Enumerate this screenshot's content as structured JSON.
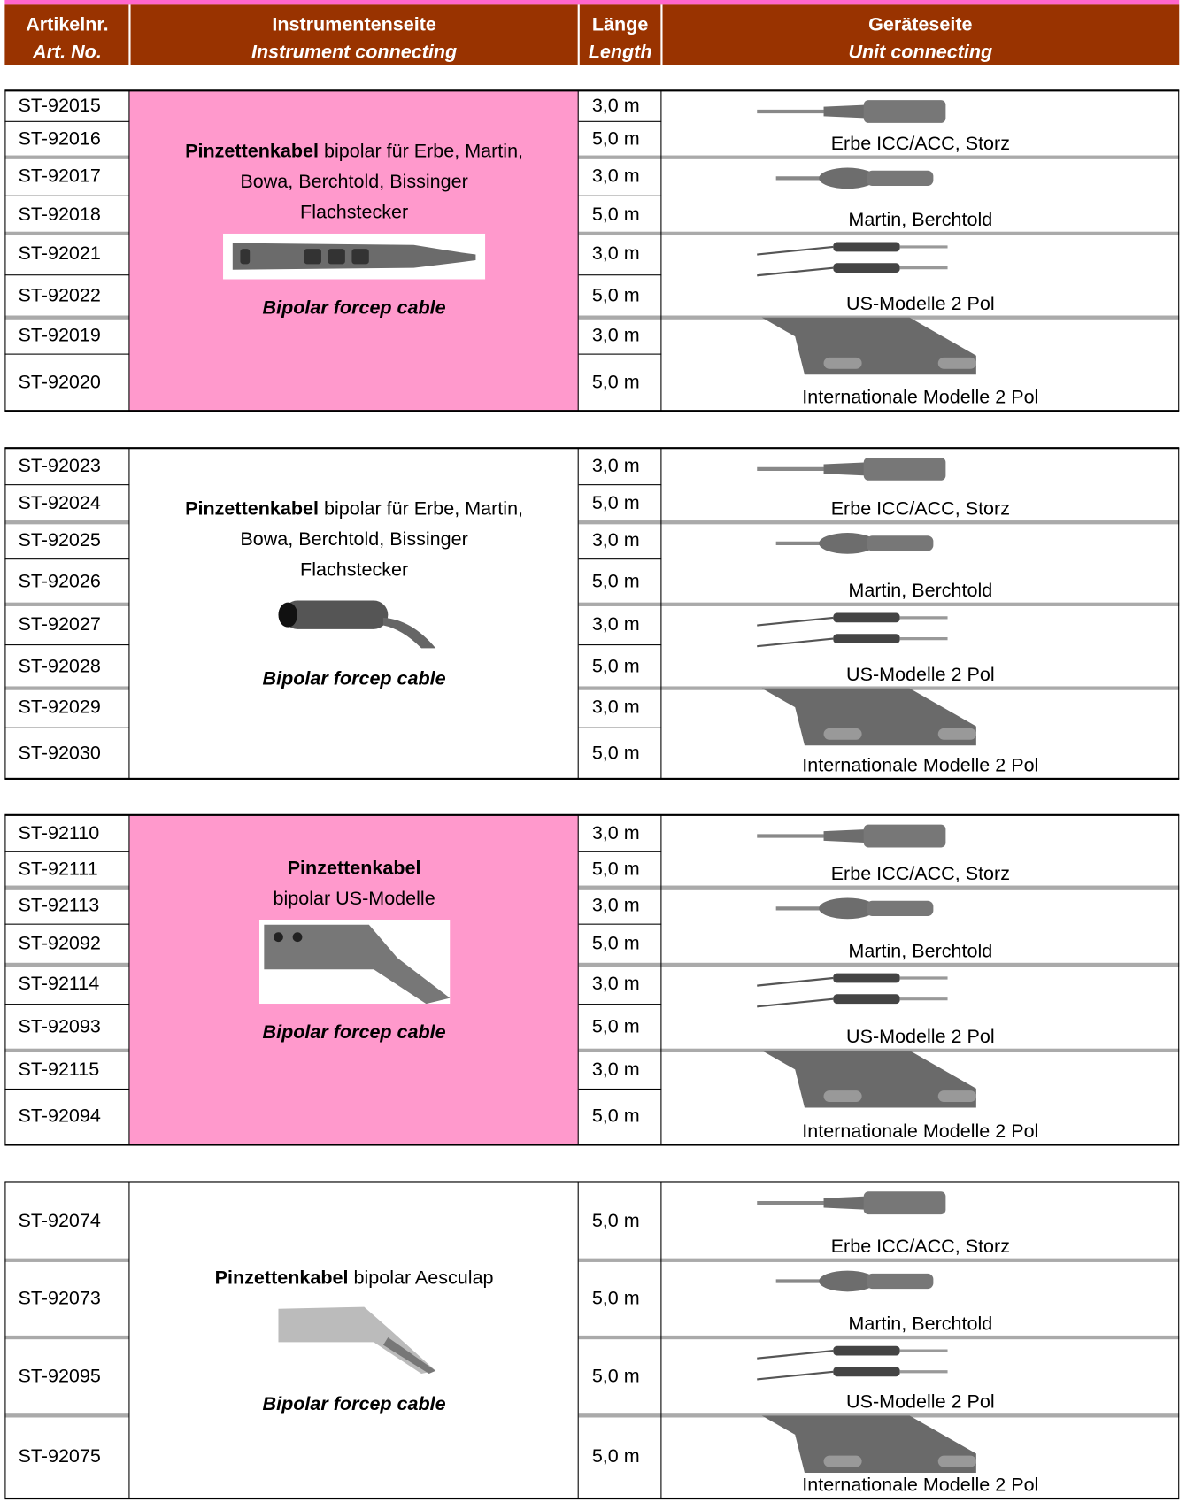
{
  "header": {
    "columns": [
      {
        "de": "Artikelnr.",
        "en": "Art. No."
      },
      {
        "de": "Instrumentenseite",
        "en": "Instrument connecting"
      },
      {
        "de": "Länge",
        "en": "Length"
      },
      {
        "de": "Geräteseite",
        "en": "Unit connecting"
      }
    ]
  },
  "sections": [
    {
      "color": "#ff99cc",
      "description": {
        "lines": [
          {
            "bold": "Pinzettenkabel",
            "text": "bipolar für Erbe, Martin,"
          },
          {
            "text": "Bowa, Berchtold, Bissinger"
          },
          {
            "text": "Flachstecker"
          }
        ],
        "caption": "Bipolar forcep cable"
      },
      "rows": [
        {
          "art": "ST-92015",
          "length": "3,0 m"
        },
        {
          "art": "ST-92016",
          "length": "5,0 m"
        },
        {
          "art": "ST-92017",
          "length": "3,0 m"
        },
        {
          "art": "ST-92018",
          "length": "5,0 m"
        },
        {
          "art": "ST-92021",
          "length": "3,0 m"
        },
        {
          "art": "ST-92022",
          "length": "5,0 m"
        },
        {
          "art": "ST-92019",
          "length": "3,0 m"
        },
        {
          "art": "ST-92020",
          "length": "5,0 m"
        }
      ],
      "connectors": [
        "Erbe ICC/ACC, Storz",
        "Martin, Berchtold",
        "US-Modelle 2 Pol",
        "Internationale Modelle 2 Pol"
      ]
    },
    {
      "color": "#ffffff",
      "description": {
        "lines": [
          {
            "bold": "Pinzettenkabel",
            "text": "bipolar für Erbe, Martin,"
          },
          {
            "text": "Bowa, Berchtold, Bissinger"
          },
          {
            "text": "Flachstecker"
          }
        ],
        "caption": "Bipolar forcep cable"
      },
      "rows": [
        {
          "art": "ST-92023",
          "length": "3,0 m"
        },
        {
          "art": "ST-92024",
          "length": "5,0 m"
        },
        {
          "art": "ST-92025",
          "length": "3,0 m"
        },
        {
          "art": "ST-92026",
          "length": "5,0 m"
        },
        {
          "art": "ST-92027",
          "length": "3,0 m"
        },
        {
          "art": "ST-92028",
          "length": "5,0 m"
        },
        {
          "art": "ST-92029",
          "length": "3,0 m"
        },
        {
          "art": "ST-92030",
          "length": "5,0 m"
        }
      ],
      "connectors": [
        "Erbe ICC/ACC, Storz",
        "Martin, Berchtold",
        "US-Modelle 2 Pol",
        "Internationale Modelle 2 Pol"
      ]
    },
    {
      "color": "#ff99cc",
      "description": {
        "lines": [
          {
            "bold": "Pinzettenkabel"
          },
          {
            "text": "bipolar US-Modelle"
          }
        ],
        "caption": "Bipolar forcep cable"
      },
      "rows": [
        {
          "art": "ST-92110",
          "length": "3,0 m"
        },
        {
          "art": "ST-92111",
          "length": "5,0 m"
        },
        {
          "art": "ST-92113",
          "length": "3,0 m"
        },
        {
          "art": "ST-92092",
          "length": "5,0 m"
        },
        {
          "art": "ST-92114",
          "length": "3,0 m"
        },
        {
          "art": "ST-92093",
          "length": "5,0 m"
        },
        {
          "art": "ST-92115",
          "length": "3,0 m"
        },
        {
          "art": "ST-92094",
          "length": "5,0 m"
        }
      ],
      "connectors": [
        "Erbe ICC/ACC, Storz",
        "Martin, Berchtold",
        "US-Modelle 2 Pol",
        "Internationale Modelle 2 Pol"
      ]
    },
    {
      "color": "#ffffff",
      "description": {
        "lines": [
          {
            "bold": "Pinzettenkabel",
            "text": "bipolar Aesculap"
          }
        ],
        "caption": "Bipolar forcep cable"
      },
      "rows": [
        {
          "art": "ST-92074",
          "length": "5,0 m"
        },
        {
          "art": "ST-92073",
          "length": "5,0 m"
        },
        {
          "art": "ST-92095",
          "length": "5,0 m"
        },
        {
          "art": "ST-92075",
          "length": "5,0 m"
        }
      ],
      "connectors": [
        "Erbe ICC/ACC, Storz",
        "Martin, Berchtold",
        "US-Modelle 2 Pol",
        "Internationale Modelle 2 Pol"
      ]
    }
  ]
}
